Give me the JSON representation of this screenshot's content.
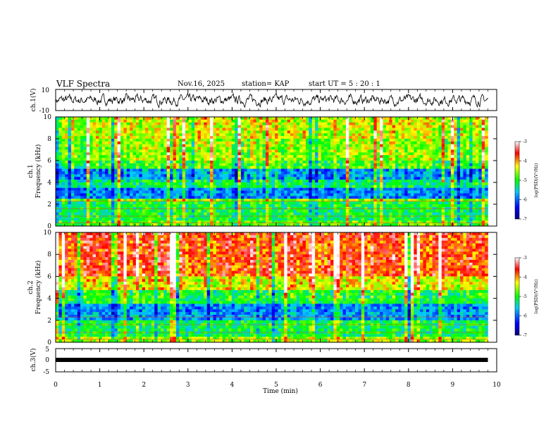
{
  "header": {
    "title": "VLF Spectra",
    "date": "Nov.16, 2025",
    "station": "station= KAP",
    "start_ut": "start  UT  =   5  : 20 : 1"
  },
  "chart_data": [
    {
      "type": "line",
      "panel": "ch1-waveform",
      "ylabel": "ch.1(V)",
      "ylim": [
        -10,
        10
      ],
      "yticks": [
        "10",
        "-10"
      ],
      "x_range_min": [
        0,
        9.8
      ],
      "description_values": "noisy waveform around 0 V, amplitude roughly +/-5 V"
    },
    {
      "type": "heatmap",
      "panel": "ch1-spectrogram",
      "ylabel_line1": "ch.1",
      "ylabel_line2": "Frequency (kHz)",
      "ylim": [
        0,
        10
      ],
      "yticks": [
        "0",
        "2",
        "4",
        "6",
        "8",
        "10"
      ],
      "x_range_min": [
        0,
        9.8
      ],
      "colorbar": {
        "label": "log(PSD)(V²/Hz)",
        "range": [
          -7,
          -3
        ],
        "ticks": [
          "-3",
          "-4",
          "-5",
          "-6",
          "-7"
        ]
      },
      "bands_khz": [
        {
          "from": 0,
          "to": 0.6,
          "level": -4.8
        },
        {
          "from": 0.6,
          "to": 2.2,
          "level": -5.1
        },
        {
          "from": 2.2,
          "to": 2.6,
          "level": -4.6
        },
        {
          "from": 2.6,
          "to": 3.5,
          "level": -5.9
        },
        {
          "from": 3.5,
          "to": 4.3,
          "level": -5.2
        },
        {
          "from": 4.3,
          "to": 5.2,
          "level": -5.8
        },
        {
          "from": 5.2,
          "to": 6.0,
          "level": -4.9
        },
        {
          "from": 6.0,
          "to": 8.0,
          "level": -4.6
        },
        {
          "from": 8.0,
          "to": 10.0,
          "level": -4.4
        }
      ]
    },
    {
      "type": "heatmap",
      "panel": "ch2-spectrogram",
      "ylabel_line1": "ch.2",
      "ylabel_line2": "Frequency (kHz)",
      "ylim": [
        0,
        10
      ],
      "yticks": [
        "0",
        "2",
        "4",
        "6",
        "8",
        "10"
      ],
      "x_range_min": [
        0,
        9.8
      ],
      "colorbar": {
        "label": "log(PSD)(V²/Hz)",
        "range": [
          -7,
          -3
        ],
        "ticks": [
          "-3",
          "-4",
          "-5",
          "-6",
          "-7"
        ]
      },
      "bands_khz": [
        {
          "from": 0,
          "to": 0.6,
          "level": -4.6
        },
        {
          "from": 0.6,
          "to": 2.0,
          "level": -5.1
        },
        {
          "from": 2.0,
          "to": 3.5,
          "level": -5.8
        },
        {
          "from": 3.5,
          "to": 4.8,
          "level": -5.0
        },
        {
          "from": 4.8,
          "to": 6.0,
          "level": -4.3
        },
        {
          "from": 6.0,
          "to": 10.0,
          "level": -3.7
        }
      ]
    },
    {
      "type": "line",
      "panel": "ch3-waveform",
      "ylabel": "ch.3(V)",
      "ylim": [
        -5,
        5
      ],
      "yticks": [
        "5",
        "0",
        "-5"
      ],
      "x_range_min": [
        0,
        9.8
      ],
      "description_values": "thick flat band near -1 V"
    }
  ],
  "x_axis": {
    "label": "Time  (min)",
    "ticks": [
      "0",
      "1",
      "2",
      "3",
      "4",
      "5",
      "6",
      "7",
      "8",
      "9",
      "10"
    ],
    "range": [
      0,
      10
    ]
  },
  "colors": {
    "colormap": [
      "#000080",
      "#0000ff",
      "#00c8ff",
      "#00ff00",
      "#ffff00",
      "#ff0000",
      "#ffffff"
    ]
  }
}
